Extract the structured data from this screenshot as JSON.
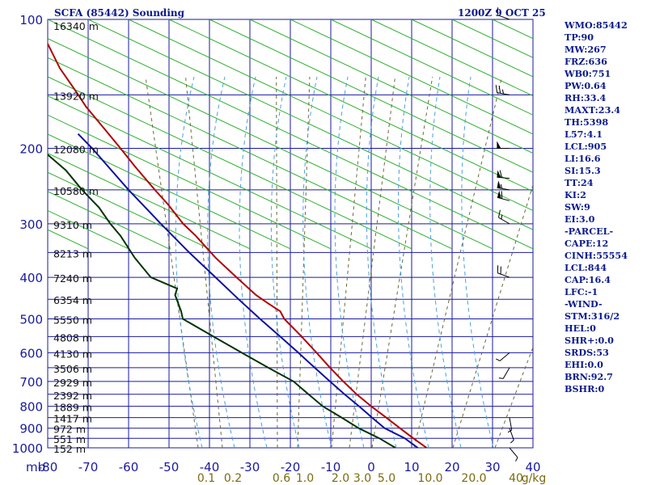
{
  "header": {
    "station": "SCFA (85442) Sounding",
    "time": "1200Z  9 OCT 25"
  },
  "indices": [
    "WMO:85442",
    "TP:90",
    "MW:267",
    "FRZ:636",
    "WB0:751",
    "PW:0.64",
    "RH:33.4",
    "MAXT:23.4",
    "TH:5398",
    "L57:4.1",
    "LCL:905",
    "LI:16.6",
    "SI:15.3",
    "TT:24",
    "KI:2",
    "SW:9",
    "EI:3.0",
    "-PARCEL-",
    "CAPE:12",
    "CINH:55554",
    "LCL:844",
    "CAP:16.4",
    "LFC:-1",
    "-WIND-",
    "STM:316/2",
    "HEL:0",
    "SHR+:0.0",
    "SRDS:53",
    "EHI:0.0",
    "BRN:92.7",
    "BSHR:0"
  ],
  "chart_data": {
    "type": "line",
    "subtype": "skew-t log-p sounding",
    "title": "SCFA (85442) Sounding",
    "xlabel": "",
    "ylabel": "mb",
    "xlim": [
      -80,
      40
    ],
    "ylim": [
      1000,
      100
    ],
    "y_scale": "log",
    "pressure_ticks": [
      100,
      200,
      300,
      400,
      500,
      600,
      700,
      800,
      900,
      1000
    ],
    "temperature_ticks": [
      -80,
      -70,
      -60,
      -50,
      -40,
      -30,
      -20,
      -10,
      0,
      10,
      20,
      30,
      40
    ],
    "temperature_tick_labels": [
      "-80",
      "-70",
      "-60",
      "-50",
      "-40",
      "-30",
      "-20",
      "-10",
      "0",
      "10",
      "20",
      "30",
      "40"
    ],
    "mixing_ratio_labels": [
      "0.1",
      "0.2",
      "0.6",
      "1.0",
      "2.0",
      "3.0",
      "5.0",
      "10.0",
      "20.0",
      "40",
      "g/kg"
    ],
    "height_labels": [
      {
        "p": 103,
        "label": "16340 m"
      },
      {
        "p": 150,
        "label": "13920 m"
      },
      {
        "p": 200,
        "label": "12080 m"
      },
      {
        "p": 250,
        "label": "10580 m"
      },
      {
        "p": 300,
        "label": "9310 m"
      },
      {
        "p": 350,
        "label": "8213 m"
      },
      {
        "p": 400,
        "label": "7240 m"
      },
      {
        "p": 450,
        "label": "6354 m"
      },
      {
        "p": 500,
        "label": "5550 m"
      },
      {
        "p": 550,
        "label": "4808 m"
      },
      {
        "p": 600,
        "label": "4130 m"
      },
      {
        "p": 650,
        "label": "3506 m"
      },
      {
        "p": 700,
        "label": "2929 m"
      },
      {
        "p": 750,
        "label": "2392 m"
      },
      {
        "p": 800,
        "label": "1889 m"
      },
      {
        "p": 850,
        "label": "1417 m"
      },
      {
        "p": 900,
        "label": "972 m"
      },
      {
        "p": 950,
        "label": "551 m"
      },
      {
        "p": 1000,
        "label": "152 m"
      }
    ],
    "series": [
      {
        "color": "#b00000",
        "points": [
          [
            1020,
            14.7
          ],
          [
            1000,
            13.7
          ],
          [
            950,
            10.4
          ],
          [
            900,
            7.1
          ],
          [
            850,
            3.7
          ],
          [
            800,
            0.0
          ],
          [
            750,
            -3.6
          ],
          [
            700,
            -6.9
          ],
          [
            650,
            -10.2
          ],
          [
            600,
            -13.5
          ],
          [
            550,
            -17.2
          ],
          [
            500,
            -21.5
          ],
          [
            480,
            -22.5
          ],
          [
            460,
            -25.5
          ],
          [
            440,
            -28.5
          ],
          [
            400,
            -33.3
          ],
          [
            360,
            -38.5
          ],
          [
            320,
            -43.4
          ],
          [
            300,
            -46.5
          ],
          [
            270,
            -50.3
          ],
          [
            250,
            -53.5
          ],
          [
            220,
            -58.5
          ],
          [
            200,
            -62.0
          ],
          [
            180,
            -66.0
          ],
          [
            160,
            -70.5
          ],
          [
            145,
            -73.5
          ],
          [
            130,
            -77.0
          ],
          [
            115,
            -79.8
          ],
          [
            103,
            -82.5
          ]
        ]
      },
      {
        "color": "#1010a0",
        "points": [
          [
            1020,
            12.2
          ],
          [
            1000,
            11.5
          ],
          [
            950,
            8.3
          ],
          [
            900,
            3.3
          ],
          [
            850,
            0.2
          ],
          [
            800,
            -3.0
          ],
          [
            750,
            -6.6
          ],
          [
            700,
            -10.2
          ],
          [
            650,
            -14.0
          ],
          [
            600,
            -18.0
          ],
          [
            550,
            -22.5
          ],
          [
            500,
            -27.5
          ],
          [
            450,
            -32.8
          ],
          [
            400,
            -38.5
          ],
          [
            350,
            -45.0
          ],
          [
            300,
            -52.0
          ],
          [
            250,
            -60.0
          ],
          [
            200,
            -69.0
          ],
          [
            185,
            -72.5
          ]
        ]
      },
      {
        "color": "#003300",
        "points": [
          [
            1000,
            6.0
          ],
          [
            950,
            2.0
          ],
          [
            900,
            -3.1
          ],
          [
            850,
            -7.3
          ],
          [
            800,
            -12.0
          ],
          [
            750,
            -15.5
          ],
          [
            700,
            -19.2
          ],
          [
            650,
            -25.5
          ],
          [
            600,
            -32.0
          ],
          [
            550,
            -39.0
          ],
          [
            500,
            -46.6
          ],
          [
            480,
            -47.0
          ],
          [
            440,
            -48.5
          ],
          [
            425,
            -48.0
          ],
          [
            400,
            -54.5
          ],
          [
            360,
            -58.5
          ],
          [
            320,
            -62.0
          ],
          [
            300,
            -64.5
          ],
          [
            275,
            -67.3
          ],
          [
            250,
            -71.5
          ],
          [
            225,
            -75.5
          ],
          [
            205,
            -80.5
          ],
          [
            180,
            -84.0
          ],
          [
            160,
            -88.0
          ],
          [
            150,
            -90.5
          ]
        ]
      }
    ],
    "wind_barbs": [
      {
        "p": 100,
        "dir": 290,
        "spd": 10
      },
      {
        "p": 150,
        "dir": 280,
        "spd": 25
      },
      {
        "p": 200,
        "dir": 270,
        "spd": 50
      },
      {
        "p": 235,
        "dir": 275,
        "spd": 60
      },
      {
        "p": 250,
        "dir": 280,
        "spd": 55
      },
      {
        "p": 265,
        "dir": 285,
        "spd": 60
      },
      {
        "p": 300,
        "dir": 300,
        "spd": 15
      },
      {
        "p": 400,
        "dir": 290,
        "spd": 20
      },
      {
        "p": 600,
        "dir": 230,
        "spd": 5
      },
      {
        "p": 650,
        "dir": 210,
        "spd": 5
      },
      {
        "p": 850,
        "dir": 170,
        "spd": 5
      },
      {
        "p": 900,
        "dir": 160,
        "spd": 5
      },
      {
        "p": 1000,
        "dir": 140,
        "spd": 5
      }
    ]
  }
}
